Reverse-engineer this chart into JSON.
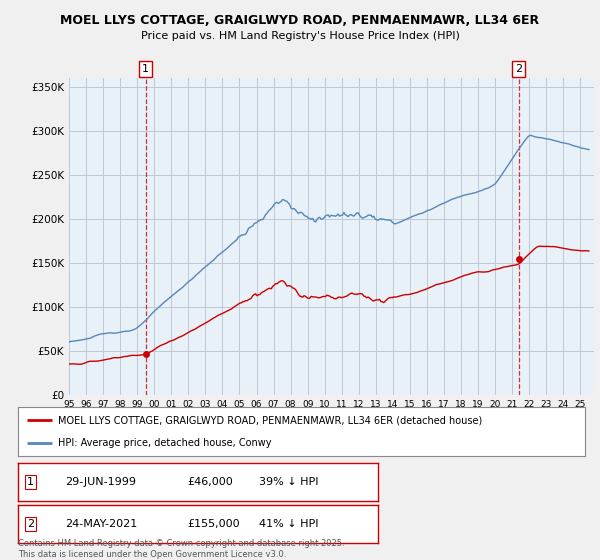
{
  "title_line1": "MOEL LLYS COTTAGE, GRAIGLWYD ROAD, PENMAENMAWR, LL34 6ER",
  "title_line2": "Price paid vs. HM Land Registry's House Price Index (HPI)",
  "background_color": "#f0f0f0",
  "plot_background": "#e8f0f8",
  "grid_color": "#c0c8d8",
  "red_line_color": "#cc0000",
  "blue_line_color": "#5588bb",
  "legend_label_red": "MOEL LLYS COTTAGE, GRAIGLWYD ROAD, PENMAENMAWR, LL34 6ER (detached house)",
  "legend_label_blue": "HPI: Average price, detached house, Conwy",
  "sale1_date": "29-JUN-1999",
  "sale1_price": 46000,
  "sale1_hpi_diff": "39% ↓ HPI",
  "sale2_date": "24-MAY-2021",
  "sale2_price": 155000,
  "sale2_hpi_diff": "41% ↓ HPI",
  "footer": "Contains HM Land Registry data © Crown copyright and database right 2025.\nThis data is licensed under the Open Government Licence v3.0.",
  "ylim": [
    0,
    360000
  ],
  "yticks": [
    0,
    50000,
    100000,
    150000,
    200000,
    250000,
    300000,
    350000
  ],
  "ytick_labels": [
    "£0",
    "£50K",
    "£100K",
    "£150K",
    "£200K",
    "£250K",
    "£300K",
    "£350K"
  ]
}
